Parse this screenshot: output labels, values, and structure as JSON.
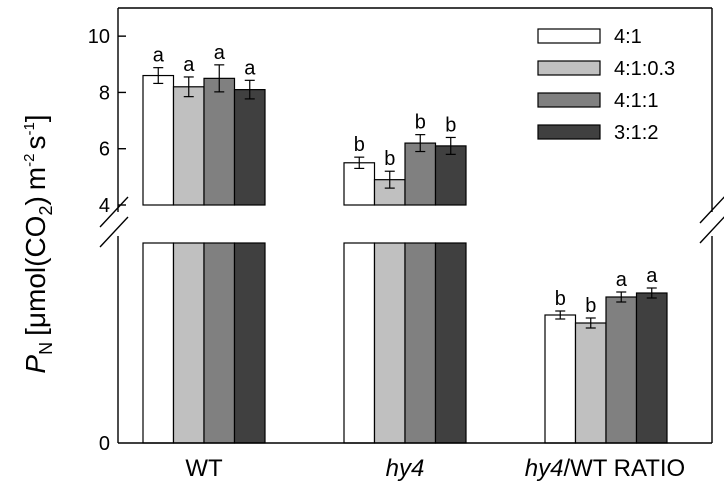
{
  "chart_data": {
    "type": "bar",
    "broken_axis": true,
    "categories": [
      "WT",
      "hy4",
      "hy4/WT RATIO"
    ],
    "category_italic_parts": [
      [
        "WT",
        false
      ],
      [
        "hy4",
        true
      ],
      [
        "hy4/WT RATIO",
        "mixed"
      ]
    ],
    "series": [
      {
        "name": "4:1",
        "color": "#ffffff",
        "values": [
          8.6,
          5.5,
          0.64
        ],
        "errors": [
          0.28,
          0.2,
          0.02
        ],
        "letters": [
          "a",
          "b",
          "b"
        ]
      },
      {
        "name": "4:1:0.3",
        "color": "#c0c0c0",
        "values": [
          8.2,
          4.9,
          0.6
        ],
        "errors": [
          0.35,
          0.3,
          0.025
        ],
        "letters": [
          "a",
          "b",
          "b"
        ]
      },
      {
        "name": "4:1:1",
        "color": "#808080",
        "values": [
          8.5,
          6.2,
          0.73
        ],
        "errors": [
          0.48,
          0.3,
          0.025
        ],
        "letters": [
          "a",
          "b",
          "a"
        ]
      },
      {
        "name": "3:1:2",
        "color": "#404040",
        "values": [
          8.1,
          6.1,
          0.75
        ],
        "errors": [
          0.33,
          0.3,
          0.025
        ],
        "letters": [
          "a",
          "b",
          "a"
        ]
      }
    ],
    "upper_axis": {
      "ylim": [
        4,
        11
      ],
      "ticks": [
        4,
        6,
        8,
        10
      ]
    },
    "lower_axis": {
      "ylim": [
        0,
        1.0
      ],
      "ticks": [
        0
      ]
    },
    "ylabel": {
      "symbol": "P",
      "symbol_sub": "N",
      "unit_open": "[",
      "unit_mu": "μ",
      "unit_mol": "mol(CO",
      "unit_co2_sub": "2",
      "unit_close_paren": ")",
      "unit_m": "m",
      "unit_m_sup": "-2",
      "unit_s": "s",
      "unit_s_sup": "-1",
      "unit_close": "]"
    },
    "xlabels": {
      "wt": "WT",
      "hy4": "hy4",
      "ratio_italic": "hy4",
      "ratio_rest": "/WT RATIO"
    },
    "legend": {
      "position": "top-right"
    }
  }
}
